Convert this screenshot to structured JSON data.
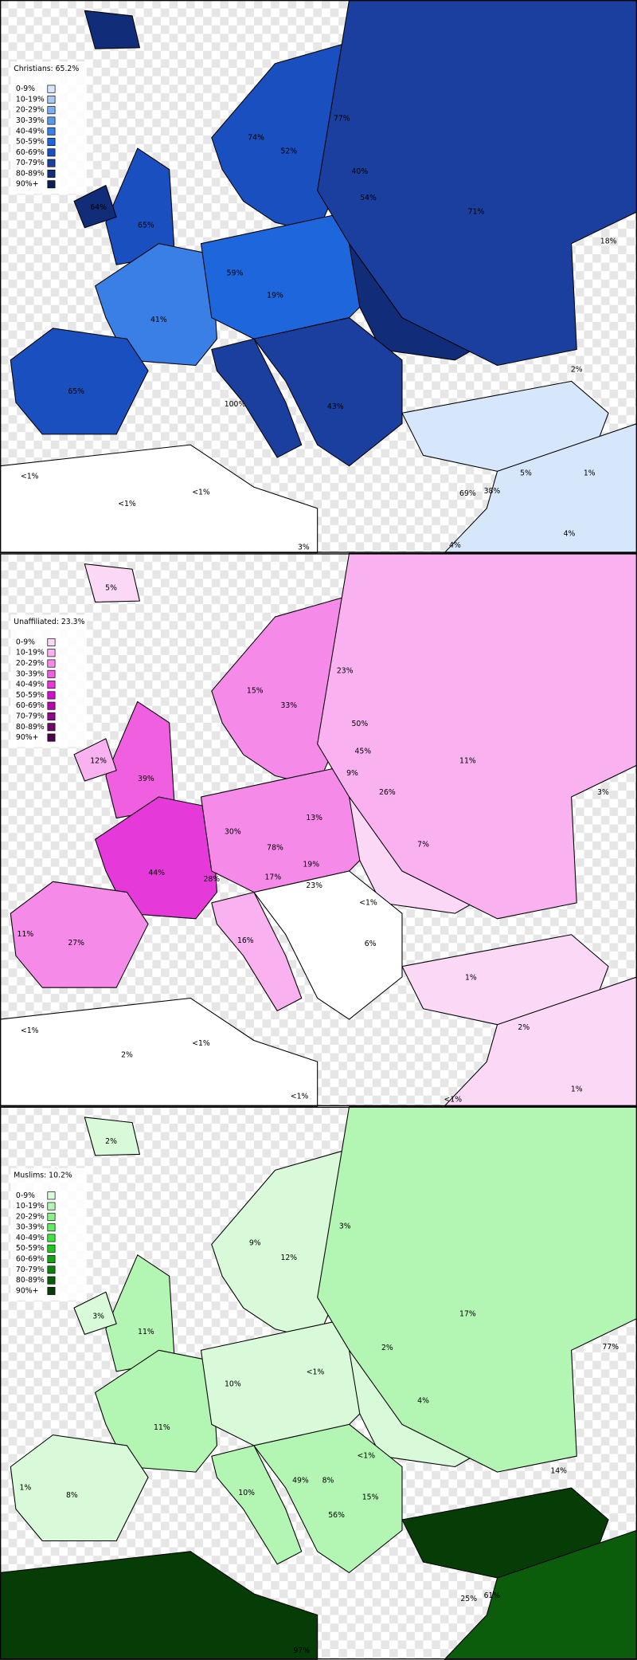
{
  "maps": [
    {
      "title": "Christians: 65.2%",
      "legend": [
        {
          "label": "0-9%",
          "color": "#d6e6fb"
        },
        {
          "label": "10-19%",
          "color": "#a9c9f3"
        },
        {
          "label": "20-29%",
          "color": "#7fb0ee"
        },
        {
          "label": "30-39%",
          "color": "#5c98ea"
        },
        {
          "label": "40-49%",
          "color": "#3a7fe6"
        },
        {
          "label": "50-59%",
          "color": "#1d66dc"
        },
        {
          "label": "60-69%",
          "color": "#1a4fc0"
        },
        {
          "label": "70-79%",
          "color": "#1a3f9e"
        },
        {
          "label": "80-89%",
          "color": "#112d79"
        },
        {
          "label": "90%+",
          "color": "#0a1f52"
        }
      ],
      "labels": [
        "65%",
        "64%",
        "41%",
        "65%",
        "59%",
        "19%",
        "74%",
        "52%",
        "77%",
        "40%",
        "54%",
        "71%",
        "18%",
        "100%",
        "43%",
        "<1%",
        "<1%",
        "<1%",
        "3%",
        "4%",
        "4%",
        "5%",
        "1%",
        "69%",
        "38%",
        "2%"
      ]
    },
    {
      "title": "Unaffiliated: 23.3%",
      "legend": [
        {
          "label": "0-9%",
          "color": "#fcd8f7"
        },
        {
          "label": "10-19%",
          "color": "#f9b1f0"
        },
        {
          "label": "20-29%",
          "color": "#f58ae9"
        },
        {
          "label": "30-39%",
          "color": "#f15fe1"
        },
        {
          "label": "40-49%",
          "color": "#e639d9"
        },
        {
          "label": "50-59%",
          "color": "#d30dcc"
        },
        {
          "label": "60-69%",
          "color": "#b00aa8"
        },
        {
          "label": "70-79%",
          "color": "#8e0887"
        },
        {
          "label": "80-89%",
          "color": "#6b0666"
        },
        {
          "label": "90%+",
          "color": "#4b044a"
        }
      ],
      "labels": [
        "5%",
        "15%",
        "33%",
        "23%",
        "50%",
        "45%",
        "12%",
        "39%",
        "11%",
        "9%",
        "26%",
        "13%",
        "30%",
        "78%",
        "44%",
        "28%",
        "17%",
        "19%",
        "23%",
        "7%",
        "3%",
        "27%",
        "11%",
        "16%",
        "<1%",
        "6%",
        "<1%",
        "2%",
        "<1%",
        "1%",
        "2%",
        "1%",
        "<1%",
        "<1%"
      ]
    },
    {
      "title": "Muslims: 10.2%",
      "legend": [
        {
          "label": "0-9%",
          "color": "#d9fad9"
        },
        {
          "label": "10-19%",
          "color": "#b3f5b3"
        },
        {
          "label": "20-29%",
          "color": "#8cef8c"
        },
        {
          "label": "30-39%",
          "color": "#66e966"
        },
        {
          "label": "40-49%",
          "color": "#3fe33f"
        },
        {
          "label": "50-59%",
          "color": "#1ec71e"
        },
        {
          "label": "60-69%",
          "color": "#17a317"
        },
        {
          "label": "70-79%",
          "color": "#118011"
        },
        {
          "label": "80-89%",
          "color": "#0b5c0b"
        },
        {
          "label": "90%+",
          "color": "#063d06"
        }
      ],
      "labels": [
        "2%",
        "9%",
        "3%",
        "12%",
        "3%",
        "11%",
        "17%",
        "77%",
        "<1%",
        "2%",
        "10%",
        "11%",
        "4%",
        "8%",
        "1%",
        "49%",
        "56%",
        "15%",
        "8%",
        "<1%",
        "14%",
        "10%",
        "97%",
        "25%",
        "61%"
      ]
    }
  ]
}
